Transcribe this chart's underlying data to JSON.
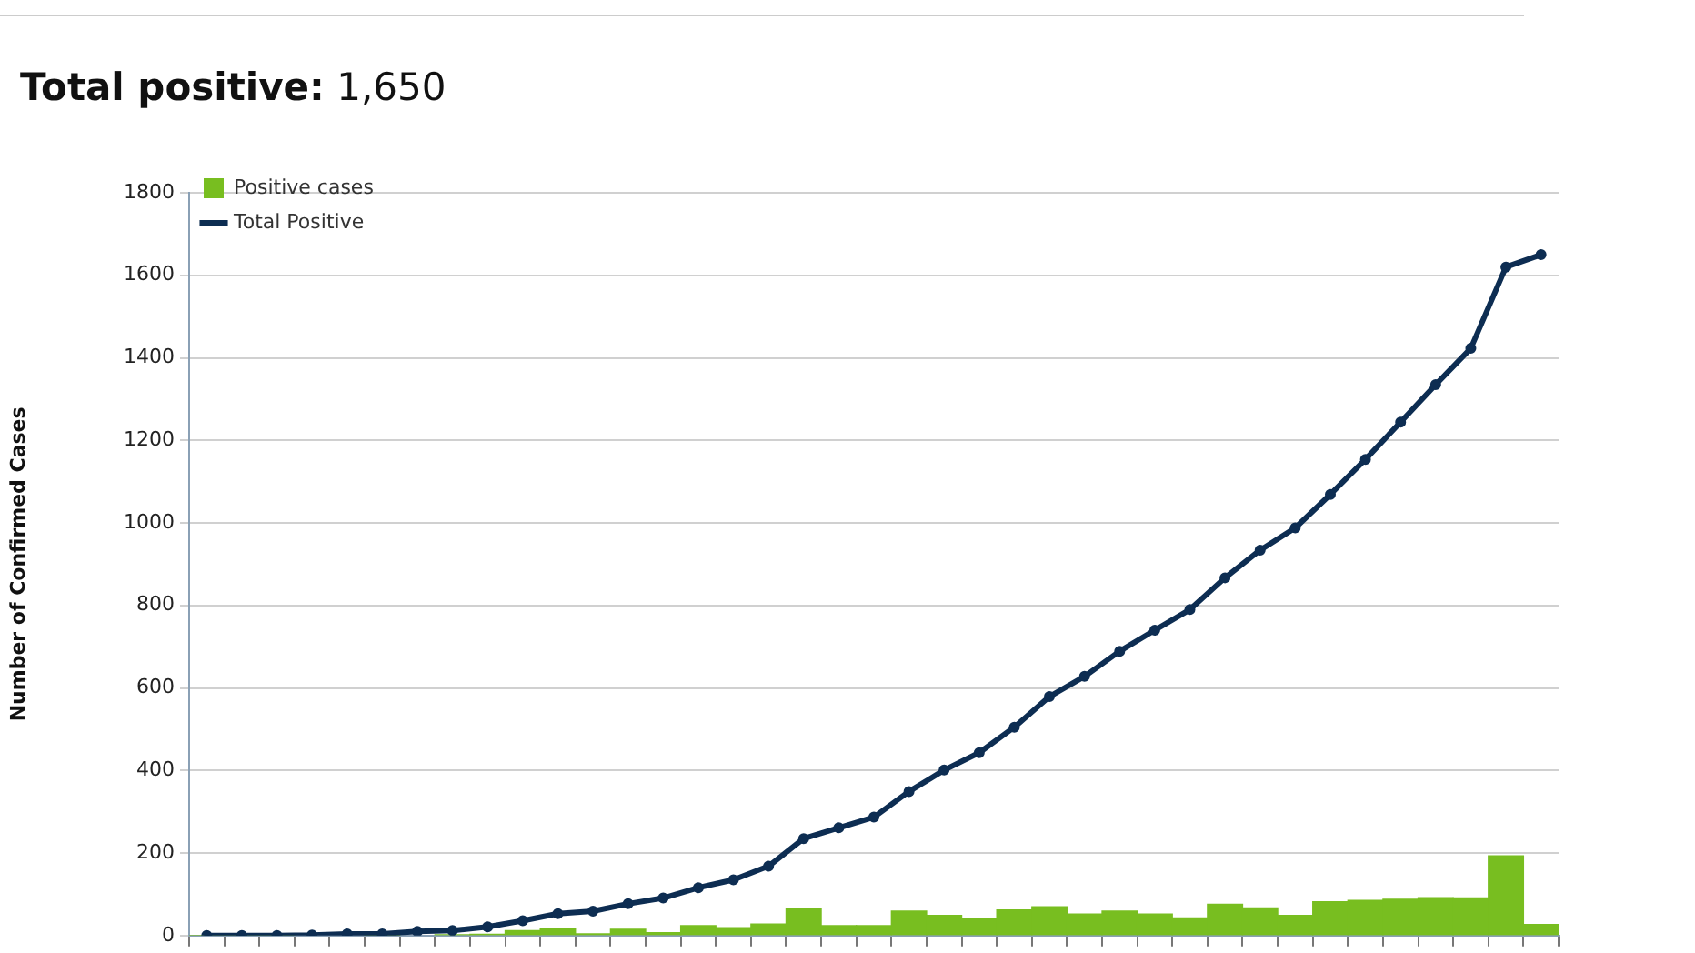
{
  "chart_data": {
    "type": "bar",
    "title": "Total positive: 1,650",
    "ylabel": "Number of Confirmed Cases",
    "categories": [
      null,
      null,
      null,
      null,
      null,
      null,
      null,
      null,
      null,
      null,
      null,
      null,
      null,
      null,
      null,
      null,
      null,
      null,
      null,
      null,
      null,
      null,
      null,
      null,
      null,
      null,
      null,
      null,
      null,
      null,
      null,
      null,
      null,
      null,
      null,
      null,
      null,
      null,
      null
    ],
    "series": [
      {
        "name": "Positive cases",
        "color": "#78be20",
        "values": [
          0,
          0,
          0,
          null,
          null,
          0,
          null,
          2,
          3,
          12,
          18,
          4,
          15,
          7,
          24,
          19,
          28,
          64,
          24,
          24,
          59,
          49,
          40,
          62,
          70,
          52,
          59,
          52,
          43,
          76,
          67,
          49,
          82,
          85,
          88,
          92,
          91,
          193,
          27
        ]
      },
      {
        "name": "Total Positive",
        "type": "line",
        "color": "#0d2d52",
        "values": [
          0,
          0,
          0,
          1,
          4,
          4,
          10,
          12,
          21,
          36,
          53,
          59,
          77,
          91,
          116,
          135,
          168,
          235,
          261,
          287,
          349,
          401,
          443,
          505,
          579,
          628,
          689,
          740,
          790,
          867,
          934,
          988,
          1069,
          1154,
          1244,
          1335,
          1423,
          1620,
          1650
        ]
      }
    ],
    "ylim": [
      0,
      1800
    ],
    "yticks": [
      0,
      200,
      400,
      600,
      800,
      1000,
      1200,
      1400,
      1600,
      1800
    ],
    "grid": "y",
    "legend": "top left",
    "marker": "circle",
    "line_style": "solid",
    "tick_labels": "y"
  }
}
